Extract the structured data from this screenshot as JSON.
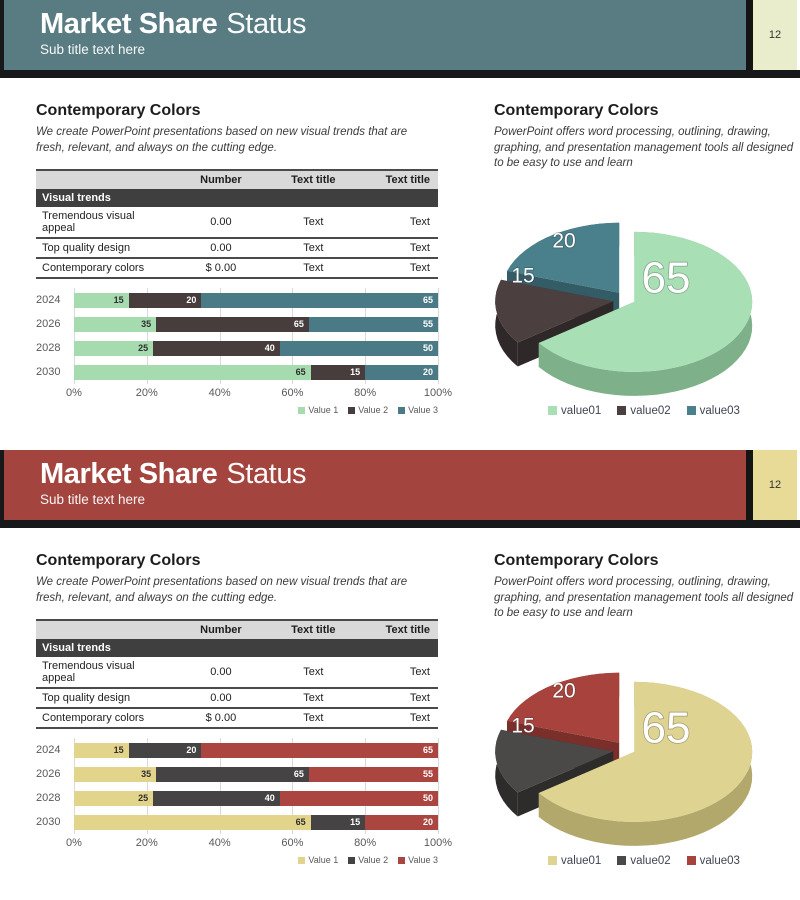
{
  "slides": [
    {
      "theme": {
        "header_bg": "#587c82",
        "page_box_bg": "#eaedcb",
        "accent": "#4a7a85"
      },
      "header": {
        "title_bold": "Market Share",
        "title_light": "Status",
        "subtitle": "Sub title text here",
        "page_number": "12"
      },
      "left": {
        "heading": "Contemporary Colors",
        "description": "We create PowerPoint presentations based on new visual trends that are fresh, relevant, and always on the cutting edge.",
        "table": {
          "columns": [
            "",
            "Number",
            "Text title",
            "Text title"
          ],
          "section": "Visual trends",
          "rows": [
            [
              "Tremendous visual appeal",
              "0.00",
              "Text",
              "Text"
            ],
            [
              "Top quality design",
              "0.00",
              "Text",
              "Text"
            ],
            [
              "Contemporary colors",
              "$ 0.00",
              "Text",
              "Text"
            ]
          ]
        },
        "bar_chart": {
          "categories": [
            "2024",
            "2026",
            "2028",
            "2030"
          ],
          "series": [
            {
              "name": "Value 1",
              "color": "#a5dbae",
              "label_color": "#2f2f2f",
              "values": [
                15,
                35,
                25,
                65
              ]
            },
            {
              "name": "Value 2",
              "color": "#473d3c",
              "label_color": "#ffffff",
              "values": [
                20,
                65,
                40,
                15
              ]
            },
            {
              "name": "Value 3",
              "color": "#4a7a85",
              "label_color": "#ffffff",
              "values": [
                65,
                55,
                50,
                20
              ]
            }
          ],
          "x_ticks": [
            "0%",
            "20%",
            "40%",
            "60%",
            "80%",
            "100%"
          ]
        }
      },
      "right": {
        "heading": "Contemporary Colors",
        "description": "PowerPoint offers word processing, outlining, drawing, graphing, and presentation management tools all designed to be easy to use and learn",
        "pie_chart": {
          "slices": [
            {
              "label": "value01",
              "value": 65,
              "color": "#a9dfb4",
              "side": "#7eb189"
            },
            {
              "label": "value02",
              "value": 15,
              "color": "#4b3f3f",
              "side": "#2f2828"
            },
            {
              "label": "value03",
              "value": 20,
              "color": "#49808c",
              "side": "#335c66"
            }
          ]
        }
      }
    },
    {
      "theme": {
        "header_bg": "#a4443e",
        "page_box_bg": "#e7db97",
        "accent": "#ab4540"
      },
      "header": {
        "title_bold": "Market Share",
        "title_light": "Status",
        "subtitle": "Sub title text here",
        "page_number": "12"
      },
      "left": {
        "heading": "Contemporary Colors",
        "description": "We create PowerPoint presentations based on new visual trends that are fresh, relevant, and always on the cutting edge.",
        "table": {
          "columns": [
            "",
            "Number",
            "Text title",
            "Text title"
          ],
          "section": "Visual trends",
          "rows": [
            [
              "Tremendous visual appeal",
              "0.00",
              "Text",
              "Text"
            ],
            [
              "Top quality design",
              "0.00",
              "Text",
              "Text"
            ],
            [
              "Contemporary colors",
              "$ 0.00",
              "Text",
              "Text"
            ]
          ]
        },
        "bar_chart": {
          "categories": [
            "2024",
            "2026",
            "2028",
            "2030"
          ],
          "series": [
            {
              "name": "Value 1",
              "color": "#e3d48c",
              "label_color": "#2f2f2f",
              "values": [
                15,
                35,
                25,
                65
              ]
            },
            {
              "name": "Value 2",
              "color": "#454343",
              "label_color": "#ffffff",
              "values": [
                20,
                65,
                40,
                15
              ]
            },
            {
              "name": "Value 3",
              "color": "#ab4540",
              "label_color": "#ffffff",
              "values": [
                65,
                55,
                50,
                20
              ]
            }
          ],
          "x_ticks": [
            "0%",
            "20%",
            "40%",
            "60%",
            "80%",
            "100%"
          ]
        }
      },
      "right": {
        "heading": "Contemporary Colors",
        "description": "PowerPoint offers word processing, outlining, drawing, graphing, and presentation management tools all designed to be easy to use and learn",
        "pie_chart": {
          "slices": [
            {
              "label": "value01",
              "value": 65,
              "color": "#ded391",
              "side": "#b3a86b"
            },
            {
              "label": "value02",
              "value": 15,
              "color": "#4b4848",
              "side": "#2e2b2b"
            },
            {
              "label": "value03",
              "value": 20,
              "color": "#a8423d",
              "side": "#7a2f2b"
            }
          ]
        }
      }
    }
  ],
  "chart_data": [
    {
      "type": "bar",
      "variant": "100%-stacked-horizontal",
      "slide": 1,
      "categories": [
        "2024",
        "2026",
        "2028",
        "2030"
      ],
      "series": [
        {
          "name": "Value 1",
          "values": [
            15,
            35,
            25,
            65
          ]
        },
        {
          "name": "Value 2",
          "values": [
            20,
            65,
            40,
            15
          ]
        },
        {
          "name": "Value 3",
          "values": [
            65,
            55,
            50,
            20
          ]
        }
      ],
      "x_ticks": [
        "0%",
        "20%",
        "40%",
        "60%",
        "80%",
        "100%"
      ],
      "grid": true,
      "legend_position": "bottom-right"
    },
    {
      "type": "pie",
      "slide": 1,
      "labels": [
        "value01",
        "value02",
        "value03"
      ],
      "values": [
        65,
        15,
        20
      ],
      "legend_position": "bottom",
      "style": "3d-exploded"
    },
    {
      "type": "bar",
      "variant": "100%-stacked-horizontal",
      "slide": 2,
      "categories": [
        "2024",
        "2026",
        "2028",
        "2030"
      ],
      "series": [
        {
          "name": "Value 1",
          "values": [
            15,
            35,
            25,
            65
          ]
        },
        {
          "name": "Value 2",
          "values": [
            20,
            65,
            40,
            15
          ]
        },
        {
          "name": "Value 3",
          "values": [
            65,
            55,
            50,
            20
          ]
        }
      ],
      "x_ticks": [
        "0%",
        "20%",
        "40%",
        "60%",
        "80%",
        "100%"
      ],
      "grid": true,
      "legend_position": "bottom-right"
    },
    {
      "type": "pie",
      "slide": 2,
      "labels": [
        "value01",
        "value02",
        "value03"
      ],
      "values": [
        65,
        15,
        20
      ],
      "legend_position": "bottom",
      "style": "3d-exploded"
    }
  ]
}
